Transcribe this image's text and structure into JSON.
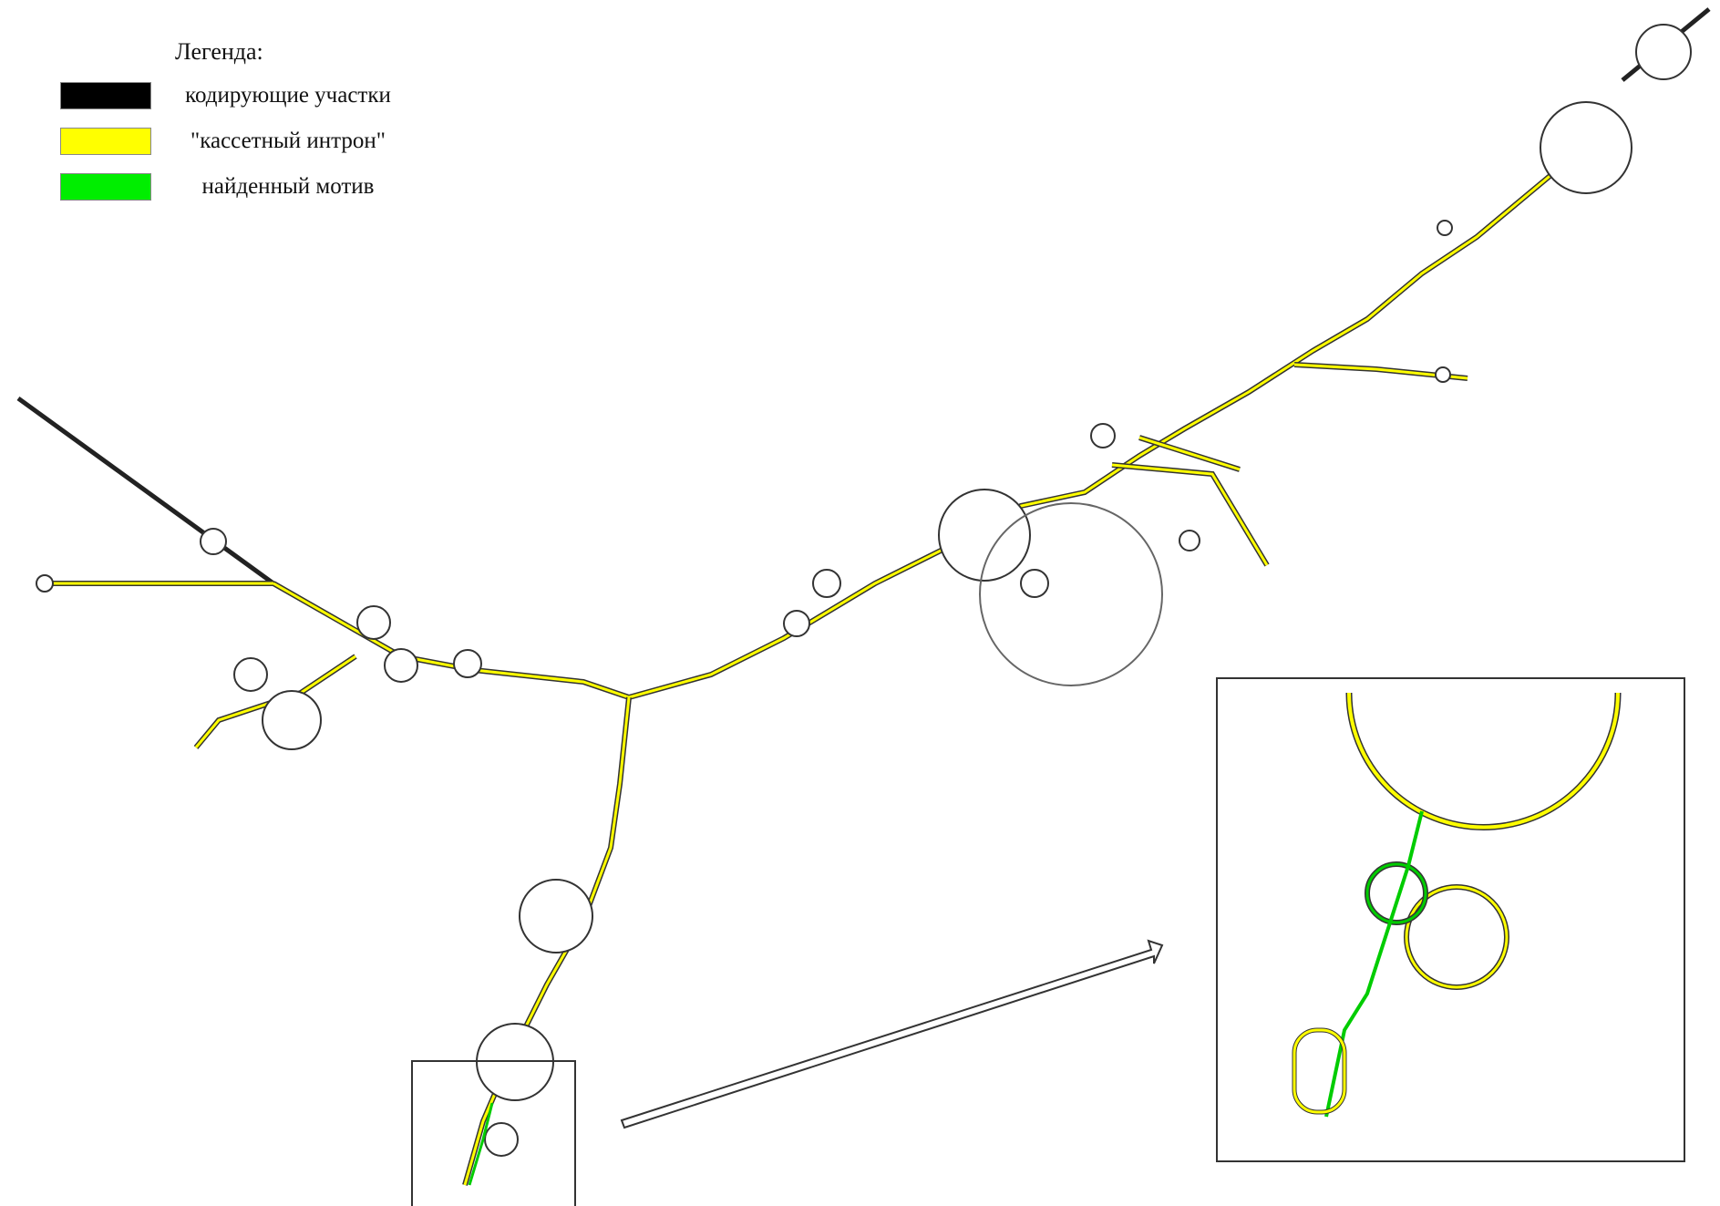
{
  "legend": {
    "title": "Легенда:",
    "items": [
      {
        "label": "кодирующие участки",
        "color": "#000000"
      },
      {
        "label": "\"кассетный интрон\"",
        "color": "#ffff00"
      },
      {
        "label": "найденный мотив",
        "color": "#00ee00"
      }
    ]
  },
  "colors": {
    "coding": "#000000",
    "intron": "#ffff00",
    "motif": "#00cc00",
    "outline": "#333333"
  },
  "icons": [
    "zoom-arrow-icon"
  ]
}
